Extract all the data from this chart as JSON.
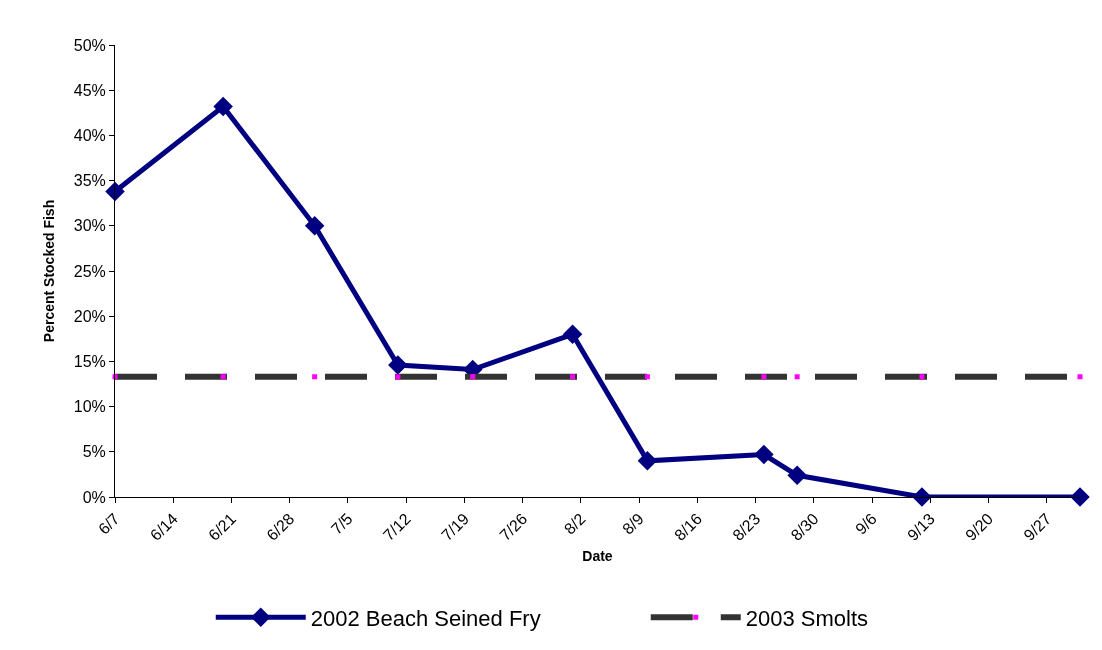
{
  "chart_data": {
    "type": "line",
    "xlabel": "Date",
    "ylabel": "Percent Stocked Fish",
    "x": [
      "--06-07",
      "--06-20",
      "--07-01",
      "--07-11",
      "--07-20",
      "--08-01",
      "--08-10",
      "--08-24",
      "--08-28",
      "--09-12",
      "--10-01"
    ],
    "series": [
      {
        "name": "2002 Beach Seined Fry",
        "color": "#000080",
        "marker": "diamond",
        "line_style": "solid",
        "values": [
          33.8,
          43.2,
          30.0,
          14.6,
          14.1,
          18.0,
          4.0,
          4.7,
          2.4,
          0,
          0
        ]
      },
      {
        "name": "2003 Smolts",
        "color": "#333333",
        "colors": [
          "#ff00ff",
          "#ff00ff",
          "#ff00ff",
          "#ff00ff",
          "#ff00ff",
          "#ff00ff",
          "#ff00ff",
          "#ff00ff",
          "#ff00ff",
          "#ff00ff",
          "#ff00ff"
        ],
        "marker": "square",
        "line_style": "dashed",
        "values": [
          13.3,
          13.3,
          13.3,
          13.3,
          13.3,
          13.3,
          13.3,
          13.3,
          13.3,
          13.3,
          13.3
        ]
      }
    ],
    "xlim": [
      "--06-07",
      "--10-01"
    ],
    "xticks": [
      {
        "value": "--06-07",
        "label": "6/7"
      },
      {
        "value": "--06-14",
        "label": "6/14"
      },
      {
        "value": "--06-21",
        "label": "6/21"
      },
      {
        "value": "--06-28",
        "label": "6/28"
      },
      {
        "value": "--07-05",
        "label": "7/5"
      },
      {
        "value": "--07-12",
        "label": "7/12"
      },
      {
        "value": "--07-19",
        "label": "7/19"
      },
      {
        "value": "--07-26",
        "label": "7/26"
      },
      {
        "value": "--08-02",
        "label": "8/2"
      },
      {
        "value": "--08-09",
        "label": "8/9"
      },
      {
        "value": "--08-16",
        "label": "8/16"
      },
      {
        "value": "--08-23",
        "label": "8/23"
      },
      {
        "value": "--08-30",
        "label": "8/30"
      },
      {
        "value": "--09-06",
        "label": "9/6"
      },
      {
        "value": "--09-13",
        "label": "9/13"
      },
      {
        "value": "--09-20",
        "label": "9/20"
      },
      {
        "value": "--09-27",
        "label": "9/27"
      }
    ],
    "ylim": [
      0,
      50
    ],
    "yticks": [
      {
        "value": 0,
        "label": "0%"
      },
      {
        "value": 5,
        "label": "5%"
      },
      {
        "value": 10,
        "label": "10%"
      },
      {
        "value": 15,
        "label": "15%"
      },
      {
        "value": 20,
        "label": "20%"
      },
      {
        "value": 25,
        "label": "25%"
      },
      {
        "value": 30,
        "label": "30%"
      },
      {
        "value": 35,
        "label": "35%"
      },
      {
        "value": 40,
        "label": "40%"
      },
      {
        "value": 45,
        "label": "45%"
      },
      {
        "value": 50,
        "label": "50%"
      }
    ],
    "legend": "bottom"
  }
}
